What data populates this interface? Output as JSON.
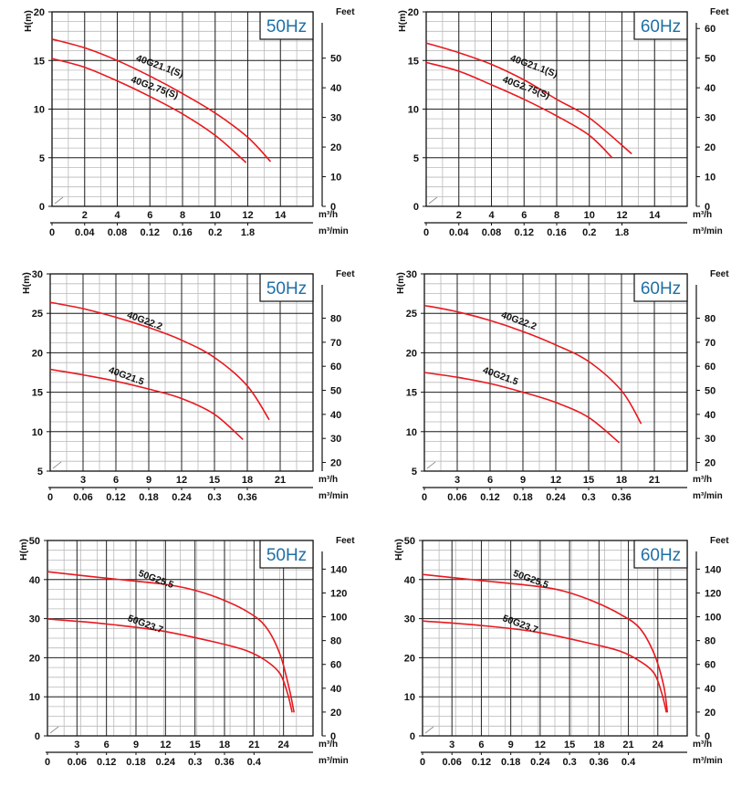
{
  "chart_data": [
    {
      "type": "line",
      "freq": "50Hz",
      "ylabel": "H(m)",
      "y2label": "Feet",
      "x1unit": "m³/h",
      "x2unit": "m³/min",
      "ylim": [
        0,
        20
      ],
      "yticks": [
        "0",
        "5",
        "10",
        "15",
        "20"
      ],
      "y2ticks": [
        "0",
        "10",
        "20",
        "30",
        "40",
        "50"
      ],
      "xlim": [
        0,
        16
      ],
      "x1ticks": [
        "2",
        "4",
        "6",
        "8",
        "10",
        "12",
        "14"
      ],
      "x2ticks": [
        "0",
        "0.04",
        "0.08",
        "0.12",
        "0.16",
        "0.2",
        "1.8"
      ],
      "grid": true,
      "series": [
        {
          "name": "40G21.1(S)",
          "x": [
            0,
            2,
            4,
            6,
            8,
            10,
            12,
            13.4
          ],
          "y": [
            17.2,
            16.3,
            15.0,
            13.4,
            11.6,
            9.6,
            7.1,
            4.6
          ]
        },
        {
          "name": "40G2.75(S)",
          "x": [
            0,
            2,
            4,
            6,
            8,
            10,
            11.9
          ],
          "y": [
            15.2,
            14.3,
            12.9,
            11.3,
            9.5,
            7.3,
            4.5
          ]
        }
      ]
    },
    {
      "type": "line",
      "freq": "60Hz",
      "ylabel": "H(m)",
      "y2label": "Feet",
      "x1unit": "m³/h",
      "x2unit": "m³/min",
      "ylim": [
        0,
        20
      ],
      "yticks": [
        "0",
        "5",
        "10",
        "15",
        "20"
      ],
      "y2ticks": [
        "0",
        "10",
        "20",
        "30",
        "40",
        "50",
        "60"
      ],
      "xlim": [
        0,
        16
      ],
      "x1ticks": [
        "2",
        "4",
        "6",
        "8",
        "10",
        "12",
        "14"
      ],
      "x2ticks": [
        "0",
        "0.04",
        "0.08",
        "0.12",
        "0.16",
        "0.2",
        "1.8"
      ],
      "grid": true,
      "series": [
        {
          "name": "40G21.1(S)",
          "x": [
            0,
            2,
            4,
            6,
            8,
            10,
            12.6
          ],
          "y": [
            16.8,
            15.8,
            14.6,
            13.0,
            11.0,
            9.1,
            5.4
          ]
        },
        {
          "name": "40G2.75(S)",
          "x": [
            0,
            2,
            4,
            6,
            8,
            10,
            11.4
          ],
          "y": [
            14.8,
            13.9,
            12.5,
            11.0,
            9.3,
            7.3,
            5.0
          ]
        }
      ]
    },
    {
      "type": "line",
      "freq": "50Hz",
      "ylabel": "H(m)",
      "y2label": "Feet",
      "x1unit": "m³/h",
      "x2unit": "m³/min",
      "ylim": [
        5,
        30
      ],
      "yticks": [
        "5",
        "10",
        "15",
        "20",
        "25",
        "30"
      ],
      "y2ticks": [
        "20",
        "30",
        "40",
        "50",
        "60",
        "70",
        "80"
      ],
      "xlim": [
        0,
        24
      ],
      "x1ticks": [
        "3",
        "6",
        "9",
        "12",
        "15",
        "18",
        "21"
      ],
      "x2ticks": [
        "0",
        "0.06",
        "0.12",
        "0.18",
        "0.24",
        "0.3",
        "0.36"
      ],
      "grid": true,
      "series": [
        {
          "name": "40G22.2",
          "x": [
            0,
            3,
            6,
            9,
            12,
            15,
            18,
            20.0
          ],
          "y": [
            26.4,
            25.6,
            24.5,
            23.2,
            21.6,
            19.4,
            15.8,
            11.5
          ]
        },
        {
          "name": "40G21.5",
          "x": [
            0,
            3,
            6,
            9,
            12,
            15,
            17.6
          ],
          "y": [
            17.9,
            17.2,
            16.4,
            15.4,
            14.2,
            12.2,
            9.0
          ]
        }
      ]
    },
    {
      "type": "line",
      "freq": "60Hz",
      "ylabel": "H(m)",
      "y2label": "Feet",
      "x1unit": "m³/h",
      "x2unit": "m³/min",
      "ylim": [
        5,
        30
      ],
      "yticks": [
        "5",
        "10",
        "15",
        "20",
        "25",
        "30"
      ],
      "y2ticks": [
        "20",
        "30",
        "40",
        "50",
        "60",
        "70",
        "80"
      ],
      "xlim": [
        0,
        24
      ],
      "x1ticks": [
        "3",
        "6",
        "9",
        "12",
        "15",
        "18",
        "21"
      ],
      "x2ticks": [
        "0",
        "0.06",
        "0.12",
        "0.18",
        "0.24",
        "0.3",
        "0.36"
      ],
      "grid": true,
      "series": [
        {
          "name": "40G22.2",
          "x": [
            0,
            3,
            6,
            9,
            12,
            15,
            18,
            19.8
          ],
          "y": [
            26.0,
            25.2,
            24.1,
            22.7,
            21.0,
            18.9,
            15.2,
            11.0
          ]
        },
        {
          "name": "40G21.5",
          "x": [
            0,
            3,
            6,
            9,
            12,
            15,
            17.8
          ],
          "y": [
            17.5,
            16.9,
            16.1,
            15.0,
            13.7,
            11.8,
            8.6
          ]
        }
      ]
    },
    {
      "type": "line",
      "freq": "50Hz",
      "ylabel": "H(m)",
      "y2label": "Feet",
      "x1unit": "m³/h",
      "x2unit": "m³/min",
      "ylim": [
        0,
        50
      ],
      "yticks": [
        "0",
        "10",
        "20",
        "30",
        "40",
        "50"
      ],
      "y2ticks": [
        "0",
        "20",
        "40",
        "60",
        "80",
        "100",
        "120",
        "140"
      ],
      "xlim": [
        0,
        28
      ],
      "x1ticks": [
        "3",
        "6",
        "9",
        "12",
        "15",
        "18",
        "21",
        "24"
      ],
      "x2ticks": [
        "0",
        "0.06",
        "0.12",
        "0.18",
        "0.24",
        "0.3",
        "0.36",
        "0.4"
      ],
      "grid": true,
      "series": [
        {
          "name": "50G25.5",
          "x": [
            0,
            6,
            12,
            15,
            18,
            21,
            23,
            24.5,
            25.5,
            26.0
          ],
          "y": [
            42.0,
            40.4,
            38.9,
            37.6,
            35.3,
            31.9,
            28.0,
            21.0,
            12.0,
            6.0
          ]
        },
        {
          "name": "50G23.7",
          "x": [
            0,
            6,
            12,
            18,
            21,
            23,
            24.5,
            25.3,
            25.8
          ],
          "y": [
            29.9,
            28.7,
            26.9,
            23.8,
            21.8,
            19.3,
            16.0,
            11.0,
            6.0
          ]
        }
      ]
    },
    {
      "type": "line",
      "freq": "60Hz",
      "ylabel": "H(m)",
      "y2label": "Feet",
      "x1unit": "m³/h",
      "x2unit": "m³/min",
      "ylim": [
        0,
        50
      ],
      "yticks": [
        "0",
        "10",
        "20",
        "30",
        "40",
        "50"
      ],
      "y2ticks": [
        "0",
        "20",
        "40",
        "60",
        "80",
        "100",
        "120",
        "140"
      ],
      "xlim": [
        0,
        28
      ],
      "x1ticks": [
        "3",
        "6",
        "9",
        "12",
        "15",
        "18",
        "21",
        "24"
      ],
      "x2ticks": [
        "0",
        "0.06",
        "0.12",
        "0.18",
        "0.24",
        "0.3",
        "0.36",
        "0.4"
      ],
      "grid": true,
      "series": [
        {
          "name": "50G25.5",
          "x": [
            0,
            6,
            12,
            15,
            18,
            21,
            23,
            24.5,
            25.5,
            25.9
          ],
          "y": [
            41.3,
            39.8,
            38.3,
            37.0,
            34.5,
            31.0,
            27.5,
            21.0,
            13.0,
            6.0
          ]
        },
        {
          "name": "50G23.7",
          "x": [
            0,
            6,
            12,
            18,
            21,
            23,
            24.5,
            25.3,
            25.8
          ],
          "y": [
            29.4,
            28.3,
            26.6,
            23.5,
            21.6,
            19.1,
            16.0,
            11.0,
            6.0
          ]
        }
      ]
    }
  ]
}
